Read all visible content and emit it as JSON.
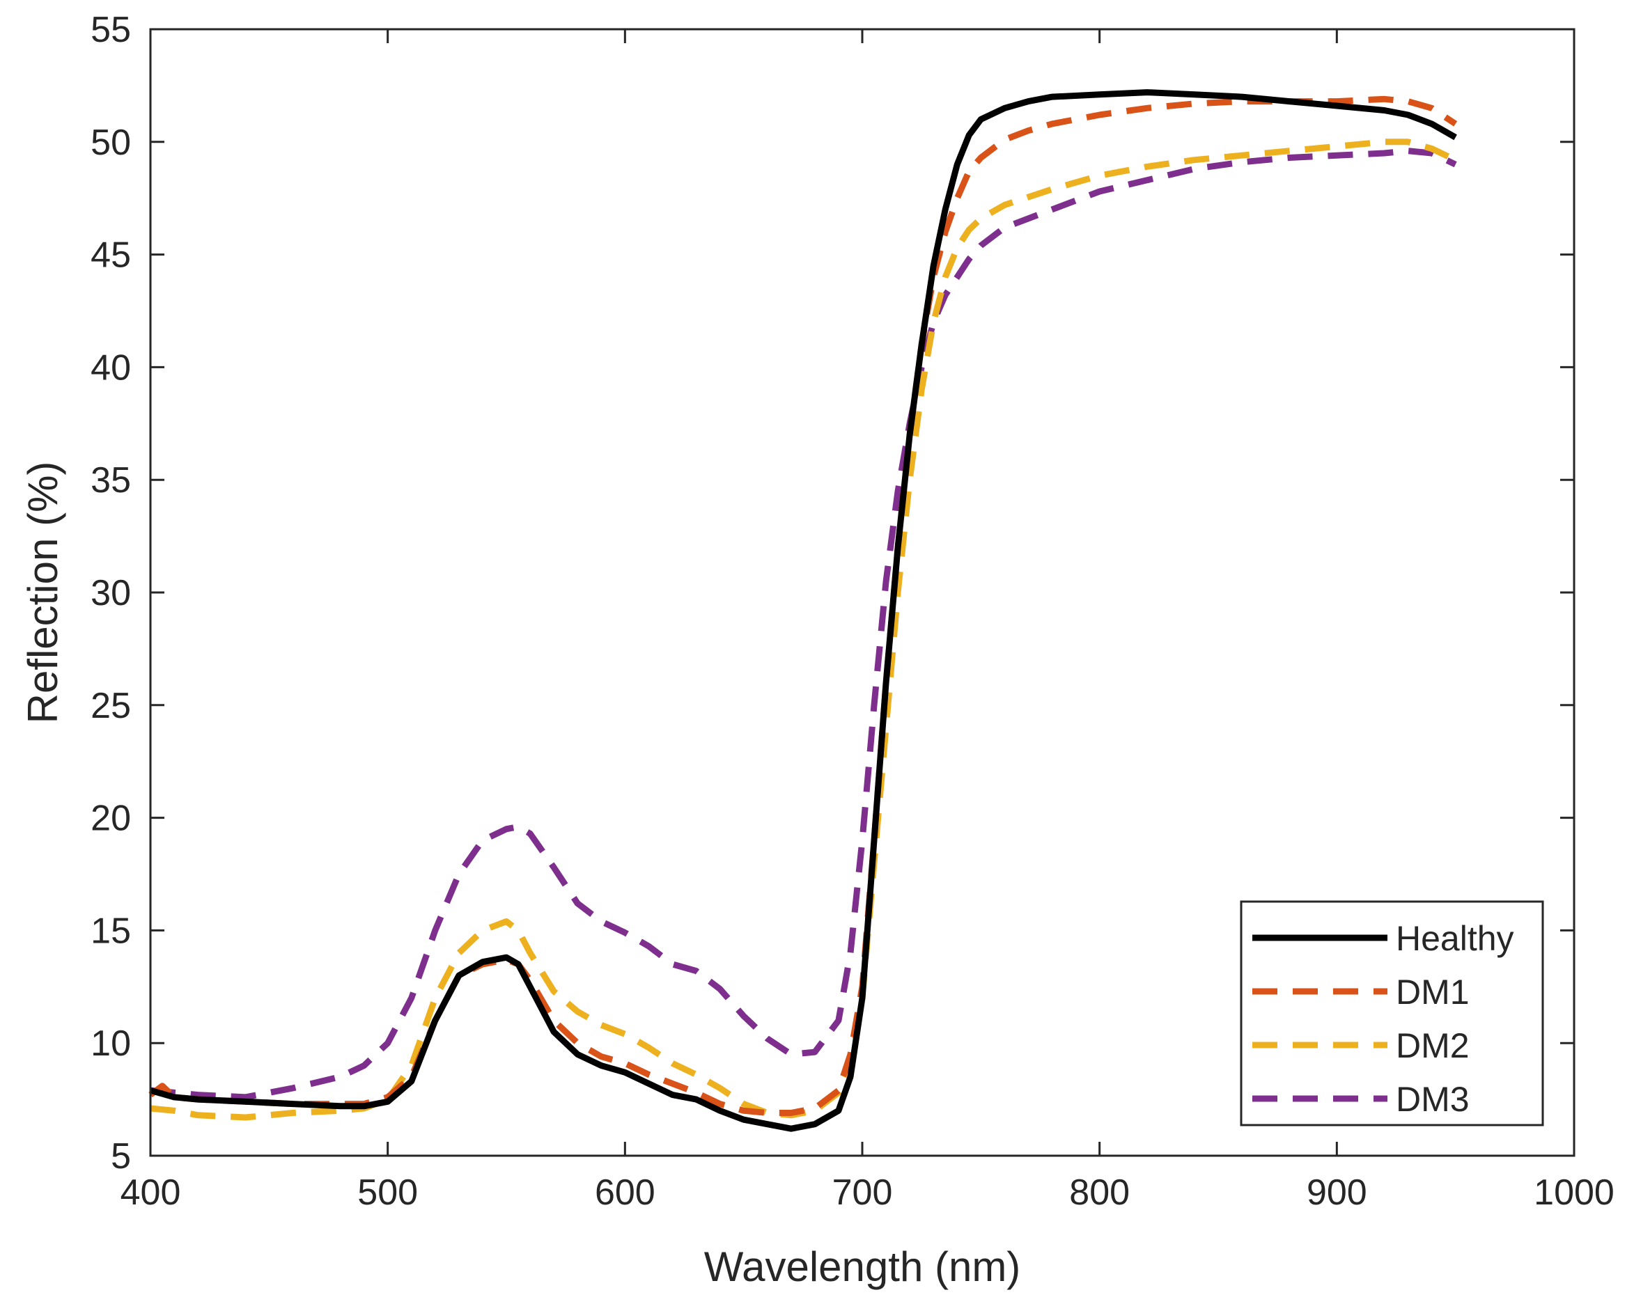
{
  "chart_data": {
    "type": "line",
    "title": "",
    "xlabel": "Wavelength (nm)",
    "ylabel": "Reflection (%)",
    "xlim": [
      400,
      1000
    ],
    "ylim": [
      5,
      55
    ],
    "xticks": [
      400,
      500,
      600,
      700,
      800,
      900,
      1000
    ],
    "yticks": [
      5,
      10,
      15,
      20,
      25,
      30,
      35,
      40,
      45,
      50,
      55
    ],
    "grid": false,
    "legend_position": "bottom-right",
    "series": [
      {
        "name": "Healthy",
        "color": "#000000",
        "style": "solid",
        "x": [
          400,
          410,
          420,
          440,
          460,
          480,
          490,
          500,
          510,
          520,
          530,
          540,
          550,
          555,
          560,
          570,
          580,
          590,
          600,
          610,
          620,
          630,
          640,
          650,
          660,
          670,
          680,
          690,
          695,
          700,
          705,
          710,
          715,
          720,
          725,
          730,
          735,
          740,
          745,
          750,
          760,
          770,
          780,
          800,
          820,
          840,
          860,
          880,
          900,
          920,
          930,
          940,
          950
        ],
        "y": [
          7.9,
          7.6,
          7.5,
          7.4,
          7.3,
          7.2,
          7.2,
          7.4,
          8.3,
          11.0,
          13.0,
          13.6,
          13.8,
          13.5,
          12.5,
          10.5,
          9.5,
          9.0,
          8.7,
          8.2,
          7.7,
          7.5,
          7.0,
          6.6,
          6.4,
          6.2,
          6.4,
          7.0,
          8.5,
          12.0,
          19.0,
          26.0,
          32.0,
          37.0,
          41.0,
          44.5,
          47.0,
          49.0,
          50.3,
          51.0,
          51.5,
          51.8,
          52.0,
          52.1,
          52.2,
          52.1,
          52.0,
          51.8,
          51.6,
          51.4,
          51.2,
          50.8,
          50.2
        ]
      },
      {
        "name": "DM1",
        "color": "#D95319",
        "style": "dashed",
        "x": [
          400,
          405,
          410,
          420,
          440,
          460,
          480,
          490,
          500,
          510,
          520,
          530,
          540,
          550,
          555,
          560,
          570,
          580,
          590,
          600,
          610,
          620,
          630,
          640,
          650,
          660,
          670,
          680,
          690,
          695,
          700,
          705,
          710,
          715,
          720,
          725,
          730,
          735,
          740,
          745,
          750,
          760,
          770,
          780,
          800,
          820,
          840,
          860,
          880,
          900,
          920,
          930,
          940,
          950
        ],
        "y": [
          7.7,
          8.1,
          7.6,
          7.5,
          7.4,
          7.3,
          7.3,
          7.3,
          7.6,
          8.5,
          11.0,
          13.0,
          13.5,
          13.7,
          13.5,
          12.8,
          11.0,
          10.0,
          9.4,
          9.1,
          8.6,
          8.2,
          7.8,
          7.3,
          7.0,
          6.9,
          6.9,
          7.1,
          7.9,
          9.5,
          12.5,
          19.0,
          26.0,
          32.0,
          37.0,
          41.0,
          44.0,
          46.0,
          47.5,
          48.7,
          49.3,
          50.1,
          50.5,
          50.8,
          51.2,
          51.5,
          51.7,
          51.8,
          51.8,
          51.8,
          51.9,
          51.8,
          51.5,
          50.8
        ]
      },
      {
        "name": "DM2",
        "color": "#EDB120",
        "style": "dashed",
        "x": [
          400,
          410,
          420,
          440,
          460,
          480,
          490,
          500,
          510,
          520,
          530,
          540,
          550,
          555,
          560,
          570,
          580,
          590,
          600,
          610,
          620,
          630,
          640,
          650,
          660,
          670,
          680,
          690,
          695,
          700,
          705,
          710,
          715,
          720,
          725,
          730,
          735,
          740,
          745,
          750,
          760,
          780,
          800,
          820,
          840,
          860,
          880,
          900,
          920,
          930,
          940,
          950
        ],
        "y": [
          7.1,
          7.0,
          6.8,
          6.7,
          6.9,
          7.0,
          7.1,
          7.5,
          9.0,
          12.0,
          14.0,
          15.0,
          15.4,
          15.0,
          14.0,
          12.3,
          11.4,
          10.8,
          10.4,
          9.8,
          9.1,
          8.6,
          8.0,
          7.3,
          6.9,
          6.8,
          7.0,
          7.8,
          9.0,
          12.0,
          18.0,
          24.0,
          30.0,
          35.0,
          39.0,
          42.0,
          44.0,
          45.3,
          46.1,
          46.6,
          47.2,
          47.9,
          48.5,
          48.9,
          49.2,
          49.4,
          49.6,
          49.8,
          50.0,
          50.0,
          49.7,
          49.2
        ]
      },
      {
        "name": "DM3",
        "color": "#7E2F8E",
        "style": "dashed",
        "x": [
          400,
          410,
          420,
          440,
          460,
          480,
          490,
          500,
          510,
          520,
          530,
          540,
          550,
          555,
          560,
          570,
          580,
          590,
          600,
          610,
          620,
          630,
          640,
          650,
          660,
          670,
          680,
          690,
          695,
          700,
          705,
          710,
          715,
          720,
          725,
          730,
          735,
          740,
          745,
          750,
          760,
          780,
          800,
          820,
          840,
          860,
          880,
          900,
          920,
          930,
          940,
          950
        ],
        "y": [
          7.9,
          7.8,
          7.7,
          7.6,
          8.0,
          8.5,
          9.0,
          10.0,
          12.0,
          15.0,
          17.5,
          19.0,
          19.5,
          19.6,
          19.3,
          17.8,
          16.2,
          15.4,
          14.9,
          14.3,
          13.5,
          13.2,
          12.4,
          11.2,
          10.2,
          9.5,
          9.6,
          11.0,
          14.0,
          19.0,
          25.0,
          30.5,
          34.5,
          37.5,
          40.0,
          42.0,
          43.2,
          44.0,
          44.8,
          45.4,
          46.2,
          47.0,
          47.8,
          48.3,
          48.8,
          49.1,
          49.3,
          49.4,
          49.5,
          49.6,
          49.5,
          49.0
        ]
      }
    ]
  }
}
